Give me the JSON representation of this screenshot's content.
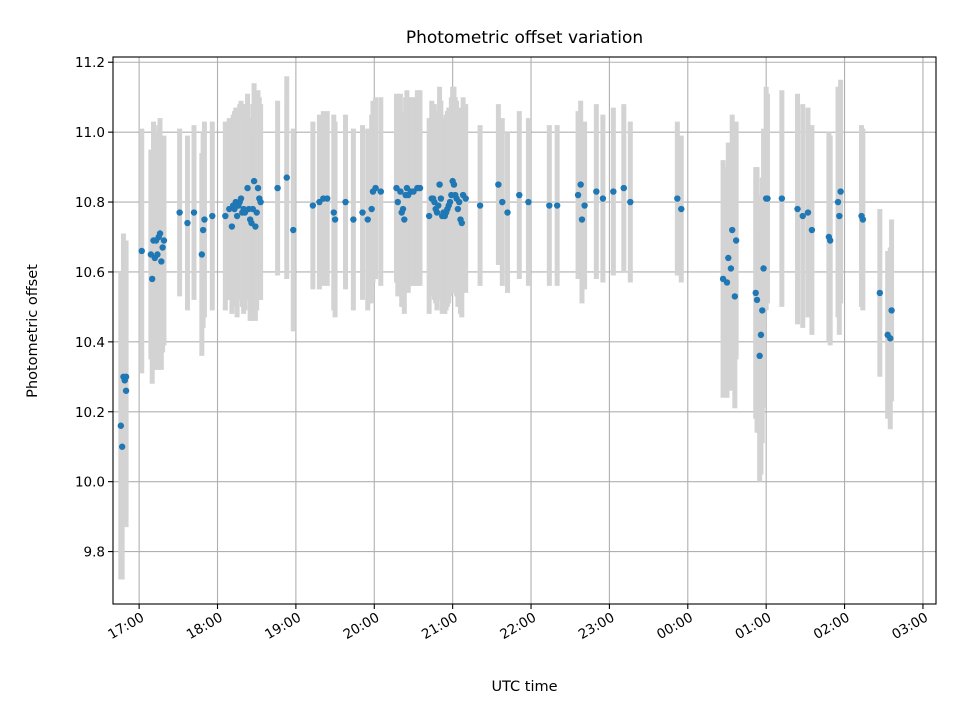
{
  "chart_data": {
    "type": "scatter",
    "title": "Photometric offset variation",
    "xlabel": "UTC time",
    "ylabel": "Photometric offset",
    "x_axis_type": "time",
    "x_ticks": [
      "17:00",
      "18:00",
      "19:00",
      "20:00",
      "21:00",
      "22:00",
      "23:00",
      "00:00",
      "01:00",
      "02:00",
      "03:00"
    ],
    "y_ticks": [
      "9.8",
      "10.0",
      "10.2",
      "10.4",
      "10.6",
      "10.8",
      "11.0",
      "11.2"
    ],
    "xlim": [
      "16:40",
      "03:10"
    ],
    "ylim": [
      9.65,
      11.215
    ],
    "grid": true,
    "colors": {
      "points": "#1f77b4",
      "error_bars": "#d3d3d3",
      "grid": "#b0b0b0"
    },
    "series": [
      {
        "x": [
          "16:46",
          "16:47",
          "16:48",
          "16:49",
          "16:50",
          "16:50",
          "17:02",
          "17:09",
          "17:10",
          "17:11",
          "17:12",
          "17:13",
          "17:14",
          "17:15",
          "17:16",
          "17:17",
          "17:18",
          "17:19",
          "17:31",
          "17:37",
          "17:42",
          "17:48",
          "17:49",
          "17:50",
          "17:56",
          "18:06",
          "18:09",
          "18:11",
          "18:12",
          "18:13",
          "18:14",
          "18:15",
          "18:16",
          "18:17",
          "18:18",
          "18:19",
          "18:20",
          "18:21",
          "18:23",
          "18:24",
          "18:25",
          "18:26",
          "18:27",
          "18:28",
          "18:29",
          "18:30",
          "18:31",
          "18:32",
          "18:33",
          "18:46",
          "18:53",
          "18:58",
          "19:13",
          "19:18",
          "19:21",
          "19:24",
          "19:29",
          "19:30",
          "19:38",
          "19:44",
          "19:51",
          "19:55",
          "19:58",
          "19:59",
          "20:01",
          "20:05",
          "20:17",
          "20:18",
          "20:20",
          "20:21",
          "20:22",
          "20:23",
          "20:24",
          "20:25",
          "20:26",
          "20:28",
          "20:30",
          "20:33",
          "20:35",
          "20:42",
          "20:44",
          "20:45",
          "20:46",
          "20:47",
          "20:48",
          "20:49",
          "20:50",
          "20:51",
          "20:52",
          "20:53",
          "20:54",
          "20:55",
          "20:56",
          "20:57",
          "20:58",
          "20:59",
          "21:00",
          "21:01",
          "21:02",
          "21:03",
          "21:04",
          "21:05",
          "21:06",
          "21:07",
          "21:08",
          "21:10",
          "21:21",
          "21:35",
          "21:38",
          "21:42",
          "21:51",
          "21:58",
          "22:14",
          "22:20",
          "22:36",
          "22:38",
          "22:39",
          "22:41",
          "22:50",
          "22:55",
          "23:03",
          "23:11",
          "23:16",
          "23:52",
          "23:55",
          "00:27",
          "00:30",
          "00:31",
          "00:33",
          "00:34",
          "00:36",
          "00:37",
          "00:52",
          "00:53",
          "00:55",
          "00:56",
          "00:57",
          "00:58",
          "01:00",
          "01:01",
          "01:12",
          "01:24",
          "01:28",
          "01:32",
          "01:35",
          "01:48",
          "01:49",
          "01:55",
          "01:56",
          "01:57",
          "02:13",
          "02:14",
          "02:27",
          "02:33",
          "02:35",
          "02:36"
        ],
        "y": [
          10.16,
          10.1,
          10.3,
          10.29,
          10.26,
          10.3,
          10.66,
          10.65,
          10.58,
          10.69,
          10.64,
          10.69,
          10.65,
          10.7,
          10.71,
          10.63,
          10.67,
          10.69,
          10.77,
          10.74,
          10.77,
          10.65,
          10.72,
          10.75,
          10.76,
          10.76,
          10.78,
          10.73,
          10.79,
          10.78,
          10.8,
          10.76,
          10.79,
          10.8,
          10.81,
          10.77,
          10.78,
          10.77,
          10.84,
          10.78,
          10.75,
          10.74,
          10.78,
          10.86,
          10.73,
          10.77,
          10.84,
          10.81,
          10.8,
          10.84,
          10.87,
          10.72,
          10.79,
          10.8,
          10.81,
          10.81,
          10.77,
          10.75,
          10.8,
          10.75,
          10.77,
          10.75,
          10.78,
          10.83,
          10.84,
          10.83,
          10.84,
          10.8,
          10.83,
          10.77,
          10.78,
          10.75,
          10.82,
          10.84,
          10.82,
          10.83,
          10.83,
          10.84,
          10.84,
          10.76,
          10.81,
          10.81,
          10.8,
          10.78,
          10.77,
          10.79,
          10.85,
          10.81,
          10.76,
          10.77,
          10.76,
          10.77,
          10.78,
          10.79,
          10.8,
          10.82,
          10.86,
          10.85,
          10.82,
          10.81,
          10.78,
          10.8,
          10.75,
          10.74,
          10.82,
          10.81,
          10.79,
          10.85,
          10.8,
          10.77,
          10.82,
          10.8,
          10.79,
          10.79,
          10.82,
          10.85,
          10.75,
          10.79,
          10.83,
          10.81,
          10.83,
          10.84,
          10.8,
          10.81,
          10.78,
          10.58,
          10.57,
          10.64,
          10.61,
          10.72,
          10.53,
          10.69,
          10.54,
          10.52,
          10.36,
          10.42,
          10.49,
          10.61,
          10.81,
          10.81,
          10.81,
          10.78,
          10.76,
          10.77,
          10.72,
          10.7,
          10.69,
          10.8,
          10.76,
          10.83,
          10.76,
          10.75,
          10.54,
          10.42,
          10.41,
          10.49
        ],
        "yerr": [
          0.44,
          0.38,
          0.41,
          0.4,
          0.39,
          0.39,
          0.35,
          0.3,
          0.3,
          0.34,
          0.32,
          0.31,
          0.33,
          0.32,
          0.33,
          0.31,
          0.3,
          0.3,
          0.24,
          0.25,
          0.25,
          0.29,
          0.28,
          0.28,
          0.27,
          0.27,
          0.26,
          0.25,
          0.26,
          0.28,
          0.27,
          0.29,
          0.27,
          0.28,
          0.28,
          0.27,
          0.3,
          0.28,
          0.27,
          0.26,
          0.29,
          0.28,
          0.3,
          0.28,
          0.27,
          0.28,
          0.28,
          0.29,
          0.28,
          0.25,
          0.29,
          0.29,
          0.24,
          0.25,
          0.25,
          0.25,
          0.28,
          0.28,
          0.25,
          0.26,
          0.25,
          0.26,
          0.27,
          0.26,
          0.26,
          0.27,
          0.27,
          0.27,
          0.28,
          0.27,
          0.28,
          0.27,
          0.28,
          0.28,
          0.28,
          0.27,
          0.27,
          0.28,
          0.28,
          0.28,
          0.28,
          0.27,
          0.28,
          0.27,
          0.28,
          0.27,
          0.28,
          0.28,
          0.28,
          0.27,
          0.28,
          0.28,
          0.28,
          0.28,
          0.27,
          0.28,
          0.27,
          0.28,
          0.28,
          0.28,
          0.28,
          0.27,
          0.27,
          0.27,
          0.28,
          0.27,
          0.23,
          0.23,
          0.24,
          0.23,
          0.24,
          0.24,
          0.23,
          0.23,
          0.24,
          0.24,
          0.24,
          0.24,
          0.25,
          0.24,
          0.24,
          0.24,
          0.23,
          0.22,
          0.21,
          0.34,
          0.33,
          0.33,
          0.35,
          0.33,
          0.32,
          0.34,
          0.36,
          0.38,
          0.36,
          0.4,
          0.38,
          0.4,
          0.32,
          0.3,
          0.31,
          0.33,
          0.32,
          0.3,
          0.3,
          0.3,
          0.3,
          0.33,
          0.34,
          0.32,
          0.26,
          0.26,
          0.24,
          0.24,
          0.26,
          0.26
        ]
      }
    ]
  }
}
